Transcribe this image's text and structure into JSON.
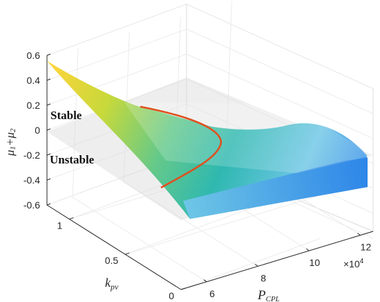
{
  "chart_data": {
    "type": "surface3d",
    "title": "",
    "xlabel": "P",
    "xlabel_sub": "CPL",
    "x_multiplier_base": "×10",
    "x_multiplier_exp": "4",
    "ylabel": "k",
    "ylabel_sub": "pv",
    "zlabel_parts": [
      "μ",
      "1",
      "+μ",
      "2"
    ],
    "xlim": [
      5,
      12.5
    ],
    "ylim": [
      0,
      1.2
    ],
    "zlim": [
      -0.6,
      0.6
    ],
    "x_ticks": [
      "6",
      "8",
      "10",
      "12"
    ],
    "y_ticks": [
      "0",
      "0.5",
      "1"
    ],
    "z_ticks": [
      "0.6",
      "0.4",
      "0.2",
      "0",
      "-0.2",
      "-0.4",
      "-0.6"
    ],
    "reference_plane": {
      "z": 0,
      "color": "#d9d9d9"
    },
    "region_labels": [
      "Stable",
      "Unstable"
    ],
    "stability_boundary_color": "#e0501e",
    "surface_corners": [
      {
        "x": 5.0,
        "y": 1.2,
        "z": 0.55
      },
      {
        "x": 12.5,
        "y": 1.2,
        "z": -0.34
      },
      {
        "x": 12.5,
        "y": 0.0,
        "z": -0.62
      },
      {
        "x": 5.0,
        "y": 0.0,
        "z": -0.62
      }
    ],
    "colormap": [
      "#ffd43b",
      "#c8d93a",
      "#64c98a",
      "#2fb8b0",
      "#6ec6e6",
      "#2e86e8"
    ]
  }
}
